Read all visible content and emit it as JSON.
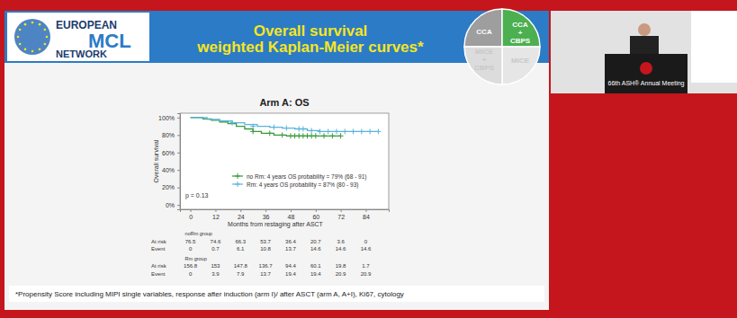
{
  "slide": {
    "logo": [
      "EUROPEAN",
      "MCL",
      "NETWORK"
    ],
    "title": [
      "Overall survival",
      "weighted Kaplan-Meier curves*"
    ],
    "wheel": [
      "CCA",
      "CCA + CBPS",
      "MICE",
      "MICE + CBPS"
    ],
    "footnote": "*Propensity Score including MIPI single variables, response after induction (arm I)/  after ASCT (arm A, A+I), Ki67, cytology",
    "video_caption": "66th ASH® Annual Meeting"
  },
  "chart_data": {
    "type": "line",
    "title": "Arm A: OS",
    "x_label": "Months from restaging after ASCT",
    "y_label": "Overall survival",
    "line_style": "step",
    "marker": "plus",
    "grid": false,
    "legend": "lower right",
    "xlim": [
      -5,
      95
    ],
    "xticks": [
      0,
      12,
      24,
      36,
      48,
      60,
      72,
      84
    ],
    "ylim": [
      -5,
      105
    ],
    "yticks": [
      {
        "value": 0,
        "label": "0%"
      },
      {
        "value": 20,
        "label": "20%"
      },
      {
        "value": 40,
        "label": "40%"
      },
      {
        "value": 60,
        "label": "60%"
      },
      {
        "value": 80,
        "label": "80%"
      },
      {
        "value": 100,
        "label": "100%"
      }
    ],
    "annotations": [
      "p = 0.13"
    ],
    "series": [
      {
        "name": "no Rm: 4 years OS probability  = 79% (68 - 91)",
        "color": "#3a9a3a",
        "x": [
          0,
          6,
          10,
          14,
          18,
          22,
          26,
          30,
          34,
          40,
          46,
          52,
          72
        ],
        "values": [
          100,
          98.5,
          97,
          95,
          93,
          90,
          87,
          84,
          82,
          80,
          79,
          79,
          79
        ],
        "censored": {
          "x": [
            30,
            38,
            44,
            48,
            50,
            52,
            54,
            56,
            58,
            60,
            64,
            68,
            72
          ],
          "values": [
            84,
            82,
            80,
            79,
            79,
            79,
            79,
            79,
            79,
            79,
            79,
            79,
            79
          ]
        }
      },
      {
        "name": "Rm: 4 years OS probability  = 87% (80 - 93)",
        "color": "#5ab4dc",
        "x": [
          0,
          8,
          14,
          20,
          26,
          32,
          38,
          44,
          50,
          56,
          62,
          68,
          90
        ],
        "values": [
          100,
          98,
          96,
          94,
          92,
          90,
          89,
          88,
          87,
          85,
          84,
          84,
          84
        ],
        "censored": {
          "x": [
            20,
            30,
            40,
            46,
            52,
            54,
            58,
            62,
            66,
            70,
            74,
            78,
            82,
            86,
            90
          ],
          "values": [
            94,
            90,
            89,
            88,
            87,
            87,
            85,
            84,
            84,
            84,
            84,
            84,
            84,
            84,
            84
          ]
        }
      }
    ],
    "risk_table": {
      "x": [
        0,
        12,
        24,
        36,
        48,
        60,
        72,
        84
      ],
      "groups": [
        {
          "name": "noRm group",
          "rows": [
            {
              "label": "At risk",
              "values": [
                76.5,
                74.6,
                66.3,
                53.7,
                36.4,
                20.7,
                3.6,
                0
              ]
            },
            {
              "label": "Event",
              "values": [
                0,
                0.7,
                6.1,
                10.8,
                13.7,
                14.6,
                14.6,
                14.6
              ]
            }
          ]
        },
        {
          "name": "Rm group",
          "rows": [
            {
              "label": "At risk",
              "values": [
                156.8,
                153,
                147.8,
                136.7,
                94.4,
                60.1,
                19.8,
                1.7
              ]
            },
            {
              "label": "Event",
              "values": [
                0,
                3.9,
                7.9,
                13.7,
                19.4,
                19.4,
                20.9,
                20.9
              ]
            }
          ]
        }
      ]
    }
  }
}
